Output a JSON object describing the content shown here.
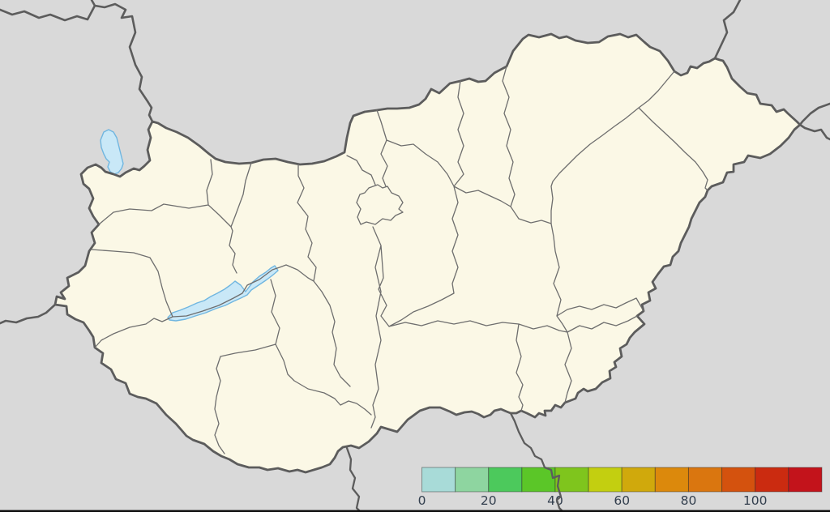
{
  "map": {
    "region_name": "hungary-counties-map",
    "colors": {
      "background": "#d9d9d9",
      "land": "#fbf8e6",
      "country_border": "#5c5c5c",
      "county_border": "#6e6e6e",
      "lake_fill": "#c9e8f7",
      "lake_stroke": "#70b6e0",
      "tick_label": "#333f4e",
      "frame_line": "#0d0d0d"
    }
  },
  "legend": {
    "type": "colorbar",
    "orientation": "horizontal",
    "cell_colors": [
      "#a8dbd8",
      "#8ed5a0",
      "#4cc95c",
      "#5bc628",
      "#7fc51d",
      "#c3cf10",
      "#d0a90c",
      "#dc890c",
      "#da760f",
      "#d4520e",
      "#cb2b10",
      "#c3131b"
    ],
    "tick_labels": [
      "0",
      "20",
      "40",
      "60",
      "80",
      "100"
    ],
    "tick_step_cells": 2,
    "value_per_cell": 10
  }
}
